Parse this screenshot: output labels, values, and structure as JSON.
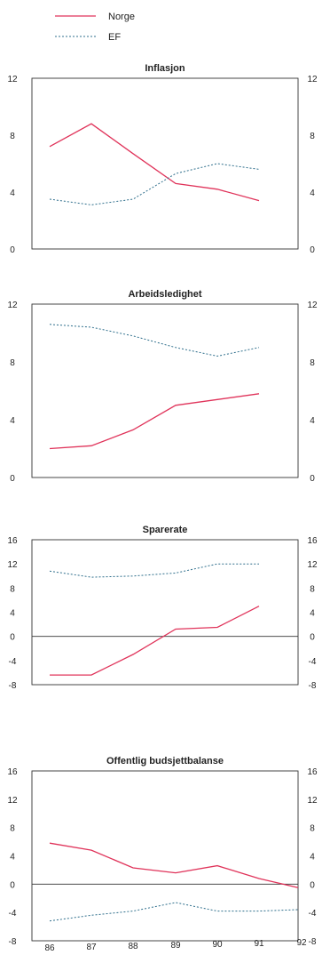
{
  "legend": [
    {
      "name": "Norge",
      "color": "#e0335a",
      "dash": false
    },
    {
      "name": "EF",
      "color": "#2f6f8c",
      "dash": true
    }
  ],
  "x_labels": [
    "86",
    "87",
    "88",
    "89",
    "90",
    "91",
    "92"
  ],
  "chart_data": [
    {
      "type": "line",
      "title": "Inflasjon",
      "categories": [
        "86",
        "87",
        "88",
        "89",
        "90",
        "91",
        "92"
      ],
      "ylim": [
        0,
        12
      ],
      "left_ticks": [
        "12",
        "8",
        "4",
        "0"
      ],
      "right_ticks": [
        "12",
        "8",
        "4",
        "0"
      ],
      "grid": false,
      "series": [
        {
          "name": "Norge",
          "values": [
            7.2,
            8.8,
            6.7,
            4.6,
            4.2,
            3.4,
            null
          ]
        },
        {
          "name": "EF",
          "values": [
            3.5,
            3.1,
            3.5,
            5.3,
            6.0,
            5.6,
            null
          ]
        }
      ]
    },
    {
      "type": "line",
      "title": "Arbeidsledighet",
      "categories": [
        "86",
        "87",
        "88",
        "89",
        "90",
        "91",
        "92"
      ],
      "ylim": [
        0,
        12
      ],
      "left_ticks": [
        "12",
        "8",
        "4",
        "0"
      ],
      "right_ticks": [
        "12",
        "8",
        "4",
        "0"
      ],
      "grid": false,
      "series": [
        {
          "name": "Norge",
          "values": [
            2.0,
            2.2,
            3.3,
            5.0,
            5.4,
            5.8,
            null
          ]
        },
        {
          "name": "EF",
          "values": [
            10.6,
            10.4,
            9.8,
            9.0,
            8.4,
            9.0,
            null
          ]
        }
      ]
    },
    {
      "type": "line",
      "title": "Sparerate",
      "categories": [
        "86",
        "87",
        "88",
        "89",
        "90",
        "91",
        "92"
      ],
      "ylim": [
        -8,
        16
      ],
      "left_ticks": [
        "16",
        "12",
        "8",
        "4",
        "0",
        "-4",
        "-8"
      ],
      "right_ticks": [
        "16",
        "12",
        "8",
        "4",
        "0",
        "-4",
        "-8"
      ],
      "zero_line": true,
      "grid": false,
      "series": [
        {
          "name": "Norge",
          "values": [
            -6.4,
            -6.4,
            -3.0,
            1.2,
            1.5,
            5.0,
            null
          ]
        },
        {
          "name": "EF",
          "values": [
            10.8,
            9.8,
            10.0,
            10.5,
            12.0,
            12.0,
            null
          ]
        }
      ]
    },
    {
      "type": "line",
      "title": "Offentlig budsjettbalanse",
      "categories": [
        "86",
        "87",
        "88",
        "89",
        "90",
        "91",
        "92"
      ],
      "ylim": [
        -8,
        16
      ],
      "left_ticks": [
        "16",
        "12",
        "8",
        "4",
        "0",
        "-4",
        "-8"
      ],
      "right_ticks": [
        "16",
        "12",
        "8",
        "4",
        "0",
        "-4",
        "-8"
      ],
      "zero_line": true,
      "grid": false,
      "series": [
        {
          "name": "Norge",
          "values": [
            5.8,
            4.8,
            2.3,
            1.6,
            2.6,
            0.8,
            -0.5
          ]
        },
        {
          "name": "EF",
          "values": [
            -5.2,
            -4.4,
            -3.8,
            -2.6,
            -3.8,
            -3.8,
            -3.6
          ]
        }
      ]
    }
  ]
}
